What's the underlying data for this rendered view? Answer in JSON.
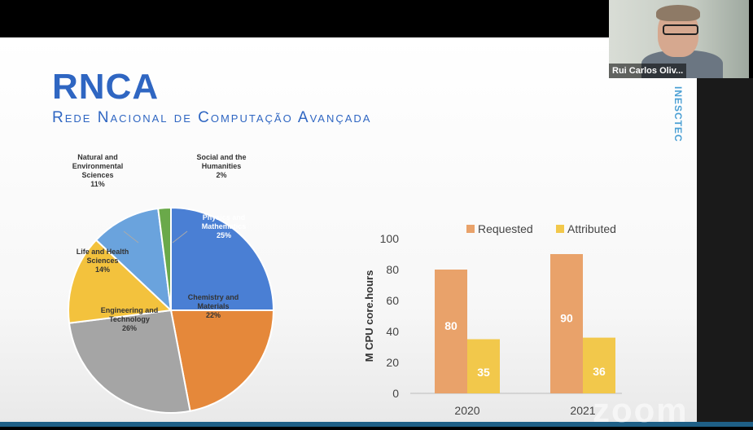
{
  "slide": {
    "title": "RNCA",
    "subtitle": "Rede Nacional de Computação Avançada",
    "vertical_brand": "INESCTEC"
  },
  "webcam": {
    "participant_name": "Rui Carlos Oliv..."
  },
  "watermark": "zoom",
  "colors": {
    "title_blue": "#2f66c2",
    "requested": "#e9a26a",
    "attributed": "#f2c84b",
    "pie_blue": "#4a7fd4",
    "pie_orange": "#e5883a",
    "pie_gray": "#a5a5a5",
    "pie_yellow": "#f3c23d",
    "pie_lightblue": "#6aa3dd",
    "pie_green": "#6aa94a"
  },
  "chart_data": [
    {
      "type": "pie",
      "slices": [
        {
          "label": "Physics and Mathematics",
          "value": 25,
          "pct_text": "25%"
        },
        {
          "label": "Chemistry and Materials",
          "value": 22,
          "pct_text": "22%"
        },
        {
          "label": "Engineering and Technology",
          "value": 26,
          "pct_text": "26%"
        },
        {
          "label": "Life and Health Sciences",
          "value": 14,
          "pct_text": "14%"
        },
        {
          "label": "Natural and Environmental Sciences",
          "value": 11,
          "pct_text": "11%"
        },
        {
          "label": "Social and the Humanities",
          "value": 2,
          "pct_text": "2%"
        }
      ]
    },
    {
      "type": "bar",
      "categories": [
        "2020",
        "2021"
      ],
      "series": [
        {
          "name": "Requested",
          "values": [
            80,
            90
          ]
        },
        {
          "name": "Attributed",
          "values": [
            35,
            36
          ]
        }
      ],
      "ylabel": "M CPU core.hours",
      "ylim": [
        0,
        100
      ],
      "yticks": [
        "0",
        "20",
        "40",
        "60",
        "80",
        "100"
      ],
      "legend": "top"
    }
  ]
}
